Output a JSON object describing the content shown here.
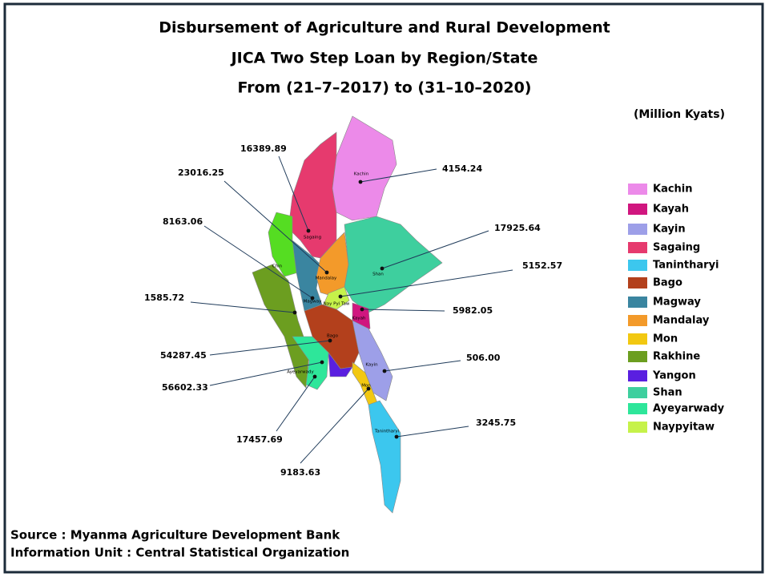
{
  "title_lines": [
    "Disbursement of Agriculture and Rural Development",
    "JICA Two Step Loan by Region/State",
    "From (21–7–2017) to (31–10–2020)"
  ],
  "unit": "(Million  Kyats)",
  "legend": [
    {
      "name": "Kachin",
      "color": "#ec8ae9"
    },
    {
      "name": "Kayah",
      "color": "#d0167f"
    },
    {
      "name": "Kayin",
      "color": "#9d9fe8"
    },
    {
      "name": "Sagaing",
      "color": "#e63a6e"
    },
    {
      "name": "Tanintharyi",
      "color": "#3cc7ee"
    },
    {
      "name": "Bago",
      "color": "#b3401c"
    },
    {
      "name": "Magway",
      "color": "#3a85a0"
    },
    {
      "name": "Mandalay",
      "color": "#f39a2a"
    },
    {
      "name": "Mon",
      "color": "#f2c811"
    },
    {
      "name": "Rakhine",
      "color": "#6c9e20"
    },
    {
      "name": "Yangon",
      "color": "#5a1fe0"
    },
    {
      "name": "Shan",
      "color": "#3ecf9e"
    },
    {
      "name": "Ayeyarwady",
      "color": "#2ee69a"
    },
    {
      "name": "Naypyitaw",
      "color": "#c6f24a"
    }
  ],
  "map_labels": [
    "Kachin",
    "Sagaing",
    "Chin",
    "Mandalay",
    "Magway",
    "Nay Pyi Taw",
    "Shan",
    "Kayah",
    "Bago",
    "Ayeyarwady",
    "Kayin",
    "Mon",
    "Tanintharyi"
  ],
  "callouts": [
    "16389.89",
    "23016.25",
    "8163.06",
    "1585.72",
    "54287.45",
    "56602.33",
    "17457.69",
    "9183.63",
    "4154.24",
    "17925.64",
    "5152.57",
    "5982.05",
    "506.00",
    "3245.75"
  ],
  "source": [
    "Source : Myanma Agriculture Development Bank",
    "Information Unit : Central Statistical Organization"
  ]
}
